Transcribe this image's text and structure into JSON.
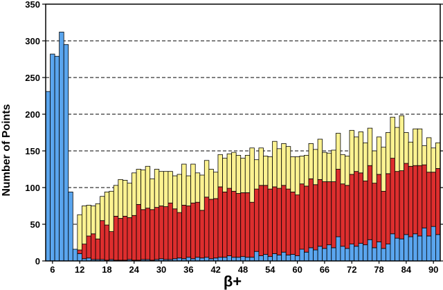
{
  "chart_data": {
    "type": "bar",
    "stacked": true,
    "xlabel": "β+",
    "ylabel": "Number of Points",
    "ylim": [
      0,
      350
    ],
    "xlim": [
      4.5,
      91.5
    ],
    "yticks": [
      0,
      50,
      100,
      150,
      200,
      250,
      300,
      350
    ],
    "xticks": [
      6,
      12,
      18,
      24,
      30,
      36,
      42,
      48,
      54,
      60,
      66,
      72,
      78,
      84,
      90
    ],
    "grid": "horizontal-dashed",
    "x": [
      5,
      6,
      7,
      8,
      9,
      10,
      11,
      12,
      13,
      14,
      15,
      16,
      17,
      18,
      19,
      20,
      21,
      22,
      23,
      24,
      25,
      26,
      27,
      28,
      29,
      30,
      31,
      32,
      33,
      34,
      35,
      36,
      37,
      38,
      39,
      40,
      41,
      42,
      43,
      44,
      45,
      46,
      47,
      48,
      49,
      50,
      51,
      52,
      53,
      54,
      55,
      56,
      57,
      58,
      59,
      60,
      61,
      62,
      63,
      64,
      65,
      66,
      67,
      68,
      69,
      70,
      71,
      72,
      73,
      74,
      75,
      76,
      77,
      78,
      79,
      80,
      81,
      82,
      83,
      84,
      85,
      86,
      87,
      88,
      89,
      90,
      91
    ],
    "series": [
      {
        "color": "#5aa5ee",
        "values": [
          231,
          282,
          279,
          312,
          295,
          94,
          16,
          10,
          3,
          4,
          2,
          2,
          2,
          1,
          2,
          1,
          1,
          1,
          2,
          1,
          1,
          2,
          2,
          1,
          2,
          3,
          2,
          2,
          3,
          4,
          3,
          5,
          3,
          5,
          4,
          5,
          3,
          4,
          5,
          5,
          7,
          5,
          5,
          6,
          5,
          5,
          13,
          7,
          9,
          6,
          10,
          8,
          12,
          8,
          9,
          7,
          16,
          12,
          18,
          15,
          20,
          17,
          22,
          18,
          33,
          20,
          17,
          23,
          20,
          24,
          22,
          29,
          18,
          26,
          17,
          23,
          37,
          31,
          30,
          36,
          33,
          37,
          34,
          45,
          34,
          47,
          36
        ]
      },
      {
        "color": "#dd2e2e",
        "values": [
          0,
          0,
          0,
          0,
          0,
          0,
          0,
          5,
          20,
          30,
          35,
          28,
          53,
          48,
          38,
          60,
          57,
          60,
          57,
          61,
          76,
          68,
          70,
          69,
          71,
          72,
          72,
          77,
          68,
          62,
          73,
          70,
          76,
          75,
          65,
          82,
          81,
          81,
          96,
          89,
          92,
          90,
          87,
          87,
          88,
          75,
          85,
          96,
          94,
          92,
          91,
          91,
          91,
          90,
          85,
          83,
          89,
          90,
          94,
          89,
          91,
          91,
          86,
          90,
          92,
          85,
          86,
          95,
          102,
          96,
          87,
          101,
          88,
          92,
          78,
          96,
          103,
          91,
          93,
          97,
          96,
          93,
          96,
          86,
          87,
          74,
          90
        ]
      },
      {
        "color": "#fcf291",
        "values": [
          0,
          0,
          0,
          0,
          0,
          0,
          0,
          48,
          52,
          42,
          38,
          48,
          33,
          45,
          55,
          42,
          53,
          49,
          47,
          58,
          48,
          54,
          57,
          42,
          52,
          47,
          48,
          43,
          45,
          52,
          56,
          41,
          53,
          40,
          48,
          50,
          41,
          36,
          44,
          46,
          47,
          53,
          52,
          47,
          51,
          74,
          40,
          51,
          40,
          44,
          62,
          54,
          57,
          58,
          48,
          52,
          38,
          42,
          48,
          48,
          55,
          40,
          39,
          43,
          49,
          40,
          40,
          60,
          47,
          56,
          52,
          51,
          44,
          51,
          60,
          56,
          56,
          60,
          75,
          42,
          33,
          50,
          50,
          26,
          47,
          33,
          35
        ]
      }
    ]
  }
}
